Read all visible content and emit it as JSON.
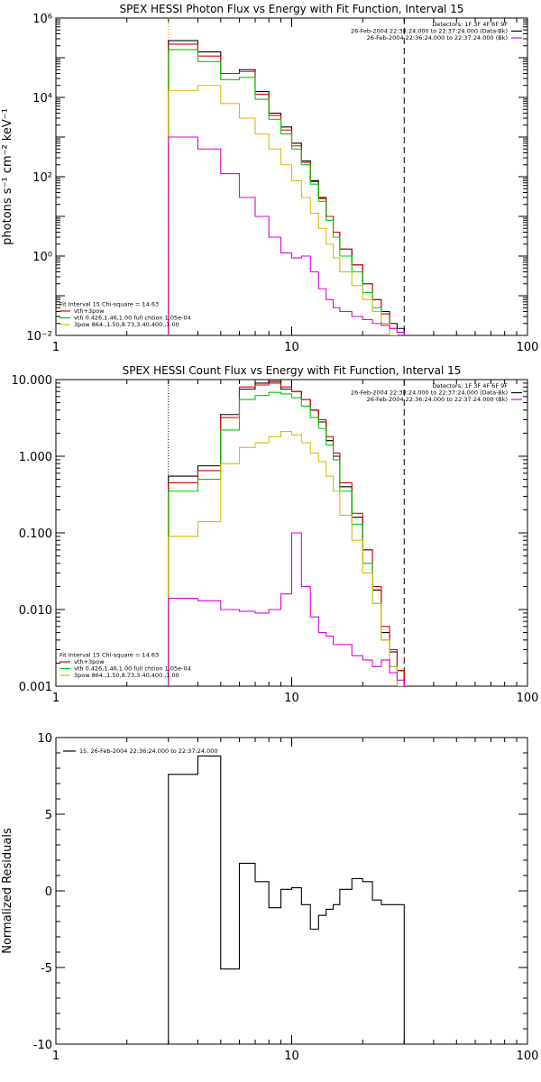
{
  "chart_data": [
    {
      "type": "line",
      "title": "SPEX HESSI Photon Flux vs Energy with Fit Function, Interval 15",
      "xlabel": "",
      "ylabel": "photons s⁻¹ cm⁻² keV⁻¹",
      "xscale": "log",
      "yscale": "log",
      "xlim": [
        1,
        100
      ],
      "ylim": [
        0.01,
        1000000
      ],
      "xticks": [
        {
          "value": 1,
          "label": "1"
        },
        {
          "value": 10,
          "label": "10"
        },
        {
          "value": 100,
          "label": "100"
        }
      ],
      "yticks": [
        {
          "value": 0.01,
          "label": "10⁻²"
        },
        {
          "value": 1,
          "label": "10⁰"
        },
        {
          "value": 100,
          "label": "10²"
        },
        {
          "value": 10000,
          "label": "10⁴"
        },
        {
          "value": 1000000,
          "label": "10⁶"
        }
      ],
      "vlines": [
        {
          "x": 3,
          "style": "dotted",
          "color": "#d08a00"
        },
        {
          "x": 30,
          "style": "dashed",
          "color": "#000000"
        }
      ],
      "legend_top_right": [
        {
          "text": "Detectors: 1F 3F 4F 6F 9F",
          "color": ""
        },
        {
          "text": "26-Feb-2004 22:38:24.000 to 22:37:24.000 (Data-Bk)",
          "color": "#000000"
        },
        {
          "text": "26-Feb-2004 22:36:24.000 to 22:37:24.000 (Bk)",
          "color": "#dd00dd"
        }
      ],
      "legend_bottom_left": [
        {
          "text": "Fit Interval 15   Chi-square = 14.63",
          "color": ""
        },
        {
          "text": "vth+3pow",
          "color": "#dd0000"
        },
        {
          "text": "vth 0.426,1.46,1.00  full chtion 1.05e-04",
          "color": "#00cc00"
        },
        {
          "text": "3pow 864.,1.50,8.73,3.40,400.,1.00",
          "color": "#ddbb00"
        }
      ],
      "bin_edges": [
        3,
        4,
        5,
        6,
        7,
        8,
        9,
        10,
        11,
        12,
        13,
        14,
        15,
        16,
        18,
        20,
        22,
        24,
        26,
        28,
        30
      ],
      "series": [
        {
          "name": "Data-Bk",
          "color": "#000000",
          "values": [
            270000,
            140000,
            40000,
            50000,
            14000,
            4000,
            1800,
            700,
            250,
            80,
            30,
            10,
            4,
            1.5,
            0.6,
            0.2,
            0.08,
            0.04,
            0.02,
            0.015
          ]
        },
        {
          "name": "vth+3pow",
          "color": "#dd0000",
          "values": [
            220000,
            110000,
            40000,
            45000,
            12000,
            3500,
            1500,
            600,
            230,
            75,
            28,
            10,
            4,
            1.5,
            0.6,
            0.2,
            0.08,
            0.035,
            0.015,
            0.012
          ]
        },
        {
          "name": "vth",
          "color": "#00cc00",
          "values": [
            160000,
            80000,
            28000,
            32000,
            9000,
            2800,
            1200,
            500,
            200,
            65,
            24,
            8,
            3,
            1,
            0.4,
            0.12,
            0.05,
            0.02,
            0.008,
            0.005
          ]
        },
        {
          "name": "3pow",
          "color": "#ddbb00",
          "values": [
            15000,
            20000,
            7000,
            3000,
            1200,
            500,
            200,
            80,
            30,
            12,
            5,
            2,
            0.9,
            0.4,
            0.18,
            0.08,
            0.04,
            0.02,
            0.01,
            0.005
          ]
        },
        {
          "name": "Bk",
          "color": "#dd00dd",
          "values": [
            1000,
            500,
            120,
            30,
            10,
            3,
            1.2,
            0.9,
            1.0,
            0.4,
            0.15,
            0.08,
            0.05,
            0.04,
            0.03,
            0.025,
            0.02,
            0.018,
            0.015,
            0.012
          ]
        }
      ]
    },
    {
      "type": "line",
      "title": "SPEX HESSI Count Flux vs Energy with Fit Function, Interval 15",
      "xlabel": "",
      "ylabel": "",
      "xscale": "log",
      "yscale": "log",
      "xlim": [
        1,
        100
      ],
      "ylim": [
        0.001,
        10
      ],
      "xticks": [
        {
          "value": 1,
          "label": "1"
        },
        {
          "value": 10,
          "label": "10"
        },
        {
          "value": 100,
          "label": "100"
        }
      ],
      "yticks": [
        {
          "value": 0.001,
          "label": "0.001"
        },
        {
          "value": 0.01,
          "label": "0.010"
        },
        {
          "value": 0.1,
          "label": "0.100"
        },
        {
          "value": 1,
          "label": "1.000"
        },
        {
          "value": 10,
          "label": "10.000"
        }
      ],
      "vlines": [
        {
          "x": 3,
          "style": "dotted",
          "color": "#000000"
        },
        {
          "x": 30,
          "style": "dashed",
          "color": "#000000"
        }
      ],
      "legend_top_right": [
        {
          "text": "Detectors: 1F 3F 4F 6F 9F",
          "color": ""
        },
        {
          "text": "26-Feb-2004 22:38:24.000 to 22:37:24.000 (Data-Bk)",
          "color": "#000000"
        },
        {
          "text": "26-Feb-2004 22:36:24.000 to 22:37:24.000 (Bk)",
          "color": "#dd00dd"
        }
      ],
      "legend_bottom_left": [
        {
          "text": "Fit Interval 15   Chi-square = 14.63",
          "color": ""
        },
        {
          "text": "vth+3pow",
          "color": "#dd0000"
        },
        {
          "text": "vth 0.426,1.46,1.00  full chtion 1.05e-04",
          "color": "#00cc00"
        },
        {
          "text": "3pow 864.,1.50,8.73,3.40,400.,1.00",
          "color": "#ddbb00"
        }
      ],
      "bin_edges": [
        3,
        4,
        5,
        6,
        7,
        8,
        9,
        10,
        11,
        12,
        13,
        14,
        15,
        16,
        18,
        20,
        22,
        24,
        26,
        28,
        30
      ],
      "series": [
        {
          "name": "Data-Bk",
          "color": "#000000",
          "values": [
            0.55,
            0.75,
            3.5,
            7.5,
            9,
            9.5,
            7.5,
            7,
            5.5,
            4,
            2.8,
            1.6,
            1.0,
            0.4,
            0.16,
            0.06,
            0.018,
            0.005,
            0.0028,
            0.0016
          ]
        },
        {
          "name": "vth+3pow",
          "color": "#dd0000",
          "values": [
            0.45,
            0.65,
            3.2,
            8,
            8.5,
            9,
            8,
            7,
            5.5,
            4,
            3,
            1.8,
            1.1,
            0.45,
            0.18,
            0.06,
            0.02,
            0.006,
            0.003,
            0.0016
          ]
        },
        {
          "name": "vth",
          "color": "#00cc00",
          "values": [
            0.35,
            0.5,
            2.2,
            5.5,
            6.2,
            6.8,
            6.5,
            5.8,
            4.5,
            3.2,
            2.3,
            1.4,
            0.9,
            0.35,
            0.13,
            0.04,
            0.012,
            0.004,
            0.0018,
            0.0008
          ]
        },
        {
          "name": "3pow",
          "color": "#ddbb00",
          "values": [
            0.09,
            0.14,
            0.8,
            1.3,
            1.5,
            1.8,
            2.1,
            1.9,
            1.5,
            1.1,
            0.85,
            0.55,
            0.35,
            0.17,
            0.08,
            0.03,
            0.012,
            0.004,
            0.0018,
            0.001
          ]
        },
        {
          "name": "Bk",
          "color": "#dd00dd",
          "values": [
            0.014,
            0.013,
            0.01,
            0.0095,
            0.009,
            0.01,
            0.016,
            0.1,
            0.02,
            0.008,
            0.005,
            0.0045,
            0.0035,
            0.0035,
            0.0025,
            0.0022,
            0.0018,
            0.0022,
            0.0015,
            0.0012
          ]
        }
      ]
    },
    {
      "type": "line",
      "title": "",
      "xlabel": "",
      "ylabel": "Normalized Residuals",
      "xscale": "log",
      "yscale": "linear",
      "xlim": [
        1,
        100
      ],
      "ylim": [
        -10,
        10
      ],
      "xticks": [
        {
          "value": 1,
          "label": "1"
        },
        {
          "value": 10,
          "label": "10"
        },
        {
          "value": 100,
          "label": "100"
        }
      ],
      "yticks": [
        {
          "value": -10,
          "label": "-10"
        },
        {
          "value": -5,
          "label": "-5"
        },
        {
          "value": 0,
          "label": "0"
        },
        {
          "value": 5,
          "label": "5"
        },
        {
          "value": 10,
          "label": "10"
        }
      ],
      "legend_top_left": [
        {
          "text": "15. 26-Feb-2004 22:36:24.000 to 22:37:24.000",
          "color": "#000000"
        }
      ],
      "bin_edges": [
        3,
        4,
        5,
        6,
        7,
        8,
        9,
        10,
        11,
        12,
        13,
        14,
        15,
        16,
        18,
        20,
        22,
        24,
        26,
        28,
        30
      ],
      "series": [
        {
          "name": "15. 26-Feb-2004 22:36:24.000 to 22:37:24.000",
          "color": "#000000",
          "values": [
            7.6,
            8.8,
            -5.1,
            1.8,
            0.6,
            -1.1,
            0.1,
            0.2,
            -0.9,
            -2.5,
            -1.6,
            -1.2,
            -0.9,
            0.1,
            0.8,
            0.6,
            -0.6,
            -0.9,
            -0.9,
            -0.9
          ]
        }
      ]
    }
  ]
}
